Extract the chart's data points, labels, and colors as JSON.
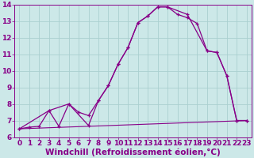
{
  "xlabel": "Windchill (Refroidissement éolien,°C)",
  "bg_color": "#cce8e8",
  "line_color": "#880088",
  "xlim": [
    -0.5,
    23.5
  ],
  "ylim": [
    6,
    14
  ],
  "yticks": [
    6,
    7,
    8,
    9,
    10,
    11,
    12,
    13,
    14
  ],
  "xticks": [
    0,
    1,
    2,
    3,
    4,
    5,
    6,
    7,
    8,
    9,
    10,
    11,
    12,
    13,
    14,
    15,
    16,
    17,
    18,
    19,
    20,
    21,
    22,
    23
  ],
  "line1_x": [
    0,
    1,
    2,
    3,
    4,
    5,
    6,
    7,
    8,
    9,
    10,
    11,
    12,
    13,
    14,
    15,
    16,
    17,
    18,
    19,
    20,
    21,
    22,
    23
  ],
  "line1_y": [
    6.5,
    6.6,
    6.65,
    7.6,
    6.65,
    8.0,
    7.5,
    7.3,
    8.2,
    9.1,
    10.4,
    11.4,
    12.9,
    13.3,
    13.85,
    13.85,
    13.4,
    13.2,
    12.85,
    11.2,
    11.1,
    9.7,
    7.0,
    7.0
  ],
  "line2_x": [
    0,
    3,
    5,
    7,
    8,
    9,
    10,
    11,
    12,
    13,
    14,
    15,
    17,
    19,
    20,
    21,
    22,
    23
  ],
  "line2_y": [
    6.5,
    7.6,
    8.0,
    6.7,
    8.2,
    9.1,
    10.4,
    11.4,
    12.9,
    13.3,
    13.85,
    13.85,
    13.4,
    11.2,
    11.1,
    9.7,
    7.0,
    7.0
  ],
  "line3_x": [
    0,
    23
  ],
  "line3_y": [
    6.5,
    7.0
  ],
  "grid_color": "#aad0d0",
  "tick_fontsize": 6.5,
  "xlabel_fontsize": 7.5
}
